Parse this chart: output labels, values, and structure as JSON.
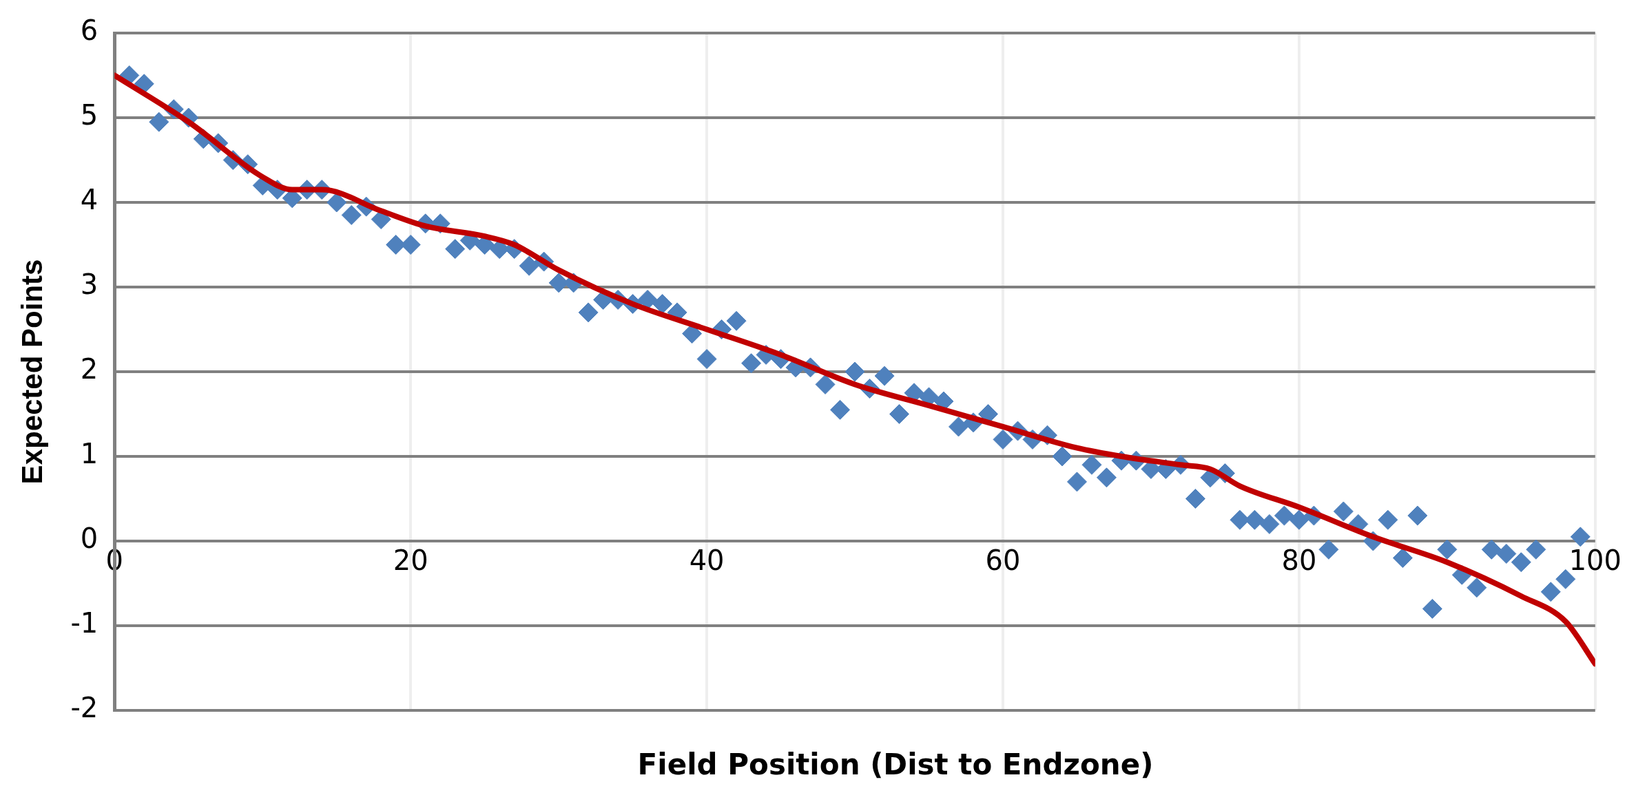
{
  "chart_data": {
    "type": "scatter",
    "xlabel": "Field Position (Dist to Endzone)",
    "ylabel": "Expected Points",
    "xlim": [
      0,
      100
    ],
    "xticks": [
      0,
      20,
      40,
      60,
      80,
      100
    ],
    "ylim": [
      -2,
      6
    ],
    "yticks": [
      -2,
      -1,
      0,
      1,
      2,
      3,
      4,
      5,
      6
    ],
    "grid": true,
    "marker": "diamond",
    "series": [
      {
        "color": "#4f81bd",
        "x": [
          1,
          2,
          3,
          4,
          5,
          6,
          7,
          8,
          9,
          10,
          11,
          12,
          13,
          14,
          15,
          16,
          17,
          18,
          19,
          20,
          21,
          22,
          23,
          24,
          25,
          26,
          27,
          28,
          29,
          30,
          31,
          32,
          33,
          34,
          35,
          36,
          37,
          38,
          39,
          40,
          41,
          42,
          43,
          44,
          45,
          46,
          47,
          48,
          49,
          50,
          51,
          52,
          53,
          54,
          55,
          56,
          57,
          58,
          59,
          60,
          61,
          62,
          63,
          64,
          65,
          66,
          67,
          68,
          69,
          70,
          71,
          72,
          73,
          74,
          75,
          76,
          77,
          78,
          79,
          80,
          81,
          82,
          83,
          84,
          85,
          86,
          87,
          88,
          89,
          90,
          91,
          92,
          93,
          94,
          95,
          96,
          97,
          98,
          99
        ],
        "values": [
          5.5,
          5.4,
          4.95,
          5.1,
          5.0,
          4.75,
          4.7,
          4.5,
          4.45,
          4.2,
          4.15,
          4.05,
          4.15,
          4.15,
          4.0,
          3.85,
          3.95,
          3.8,
          3.5,
          3.5,
          3.75,
          3.75,
          3.45,
          3.55,
          3.5,
          3.45,
          3.45,
          3.25,
          3.3,
          3.05,
          3.05,
          2.7,
          2.85,
          2.85,
          2.8,
          2.85,
          2.8,
          2.7,
          2.45,
          2.15,
          2.5,
          2.6,
          2.1,
          2.2,
          2.15,
          2.05,
          2.05,
          1.85,
          1.55,
          2.0,
          1.8,
          1.95,
          1.5,
          1.75,
          1.7,
          1.65,
          1.35,
          1.4,
          1.5,
          1.2,
          1.3,
          1.2,
          1.25,
          1.0,
          0.7,
          0.9,
          0.75,
          0.95,
          0.95,
          0.85,
          0.85,
          0.9,
          0.5,
          0.75,
          0.8,
          0.25,
          0.25,
          0.2,
          0.3,
          0.25,
          0.3,
          -0.1,
          0.35,
          0.2,
          0.0,
          0.25,
          -0.2,
          0.3,
          -0.8,
          -0.1,
          -0.4,
          -0.55,
          -0.1,
          -0.15,
          -0.25,
          -0.1,
          -0.6,
          -0.45,
          0.05
        ]
      },
      {
        "type": "line",
        "color": "#c00000",
        "marker": "none",
        "line_style": "solid",
        "x": [
          0,
          5,
          10,
          12,
          14,
          18,
          21,
          25,
          27,
          30,
          35,
          40,
          45,
          50,
          55,
          60,
          65,
          68,
          72,
          74,
          76,
          80,
          85,
          90,
          95,
          98,
          100
        ],
        "values": [
          5.5,
          4.95,
          4.3,
          4.15,
          4.15,
          3.9,
          3.72,
          3.6,
          3.5,
          3.2,
          2.8,
          2.5,
          2.2,
          1.85,
          1.6,
          1.35,
          1.1,
          1.0,
          0.9,
          0.85,
          0.65,
          0.4,
          0.05,
          -0.25,
          -0.65,
          -0.95,
          -1.45
        ]
      }
    ]
  }
}
